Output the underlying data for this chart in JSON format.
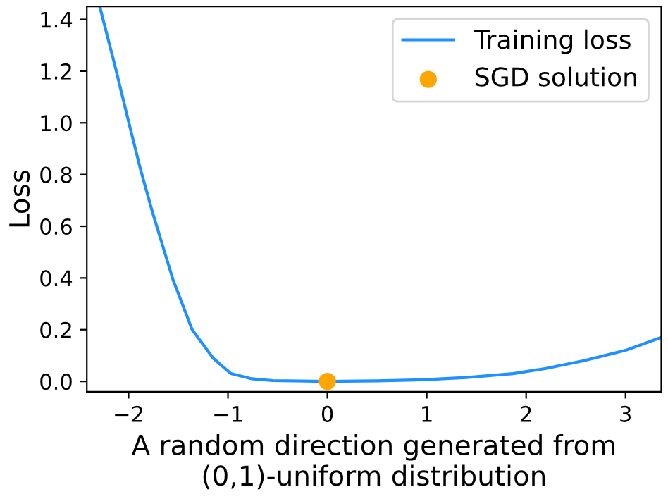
{
  "chart_data": {
    "type": "line",
    "xlabel": "A random direction generated from\n(0,1)-uniform distribution",
    "ylabel": "Loss",
    "xlim": [
      -2.42,
      3.36
    ],
    "ylim": [
      -0.04,
      1.45
    ],
    "xticks": [
      {
        "value": -2,
        "label": "−2"
      },
      {
        "value": -1,
        "label": "−1"
      },
      0,
      1,
      2,
      3
    ],
    "yticks": [
      {
        "value": 0,
        "label": "0.0"
      },
      0.2,
      0.4,
      0.6,
      0.8,
      {
        "value": 1,
        "label": "1.0"
      },
      1.2,
      1.4
    ],
    "grid": false,
    "legend": "top right",
    "series": [
      {
        "name": "Training loss",
        "color": "#1e90ff",
        "marker": "none",
        "x": [
          -2.29,
          -2.13,
          -2.0,
          -1.88,
          -1.76,
          -1.55,
          -1.36,
          -1.15,
          -0.97,
          -0.76,
          -0.55,
          0,
          0.5,
          0.95,
          1.4,
          1.87,
          2.2,
          2.58,
          3.0,
          3.36
        ],
        "values": [
          1.45,
          1.21,
          1.005,
          0.82,
          0.655,
          0.39,
          0.2,
          0.09,
          0.03,
          0.01,
          0.003,
          0,
          0.002,
          0.006,
          0.015,
          0.03,
          0.05,
          0.08,
          0.12,
          0.17
        ]
      },
      {
        "name": "SGD solution",
        "color": "#ffa500",
        "type": "scatter",
        "marker": "circle",
        "x": [
          0
        ],
        "values": [
          0
        ]
      }
    ]
  }
}
